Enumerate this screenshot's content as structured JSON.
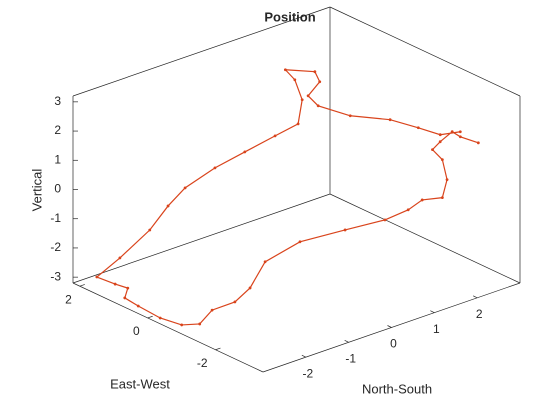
{
  "chart_data": {
    "type": "line3d",
    "title": "Position",
    "xlabel": "North-South",
    "ylabel": "East-West",
    "zlabel": "Vertical",
    "xlim": [
      -3,
      3
    ],
    "ylim": [
      -3.4,
      2.2
    ],
    "zlim": [
      -3.2,
      3.2
    ],
    "xticks": [
      -2,
      -1,
      0,
      1,
      2
    ],
    "yticks": [
      -2,
      0,
      2
    ],
    "zticks": [
      -3,
      -2,
      -1,
      0,
      1,
      2,
      3
    ],
    "series": [
      {
        "color": "#d9441c",
        "x": [
          2.74,
          2.32,
          2.13,
          1.85,
          1.67,
          1.9,
          2.01,
          1.9,
          1.43,
          1.42,
          1.32,
          1.0,
          0.39,
          -0.4,
          -1.1,
          -1.62,
          -2.16,
          -2.64,
          -2.91,
          -3.0,
          -2.95,
          -2.9,
          -2.83,
          -2.8,
          -2.76,
          -2.38,
          -2.0,
          -1.81,
          -1.65,
          -1.27,
          -0.89,
          -0.5,
          -0.2,
          0.22,
          0.61,
          0.77,
          1.11,
          0.97,
          0.58,
          0.68,
          1.16,
          1.75,
          1.98,
          2.16,
          2.43
        ],
        "y": [
          -2.5,
          -2.5,
          -2.5,
          -2.5,
          -2.5,
          -2.5,
          -2.5,
          -2.5,
          -2.5,
          -2.1,
          -1.54,
          -0.77,
          -0.21,
          -0.18,
          -0.62,
          -0.83,
          -0.84,
          -1.08,
          -0.89,
          -0.37,
          0.34,
          0.8,
          0.8,
          1.21,
          1.8,
          1.6,
          1.2,
          0.9,
          0.6,
          0.2,
          -0.2,
          -0.6,
          -0.9,
          -0.49,
          0.22,
          0.7,
          0.26,
          -0.06,
          -0.21,
          -0.38,
          -0.72,
          -1.15,
          -1.69,
          -2.11,
          -2.36
        ],
        "z": [
          1.24,
          1.66,
          1.93,
          1.73,
          1.55,
          1.09,
          0.35,
          -0.21,
          -0.05,
          -0.6,
          -1.2,
          -1.8,
          -2.2,
          -2.5,
          -2.8,
          -2.9,
          -2.9,
          -3,
          -3,
          -3,
          -3,
          -3,
          -2.7,
          -2.8,
          -2.9,
          -2.33,
          -1.35,
          -0.46,
          0.24,
          0.95,
          1.52,
          2.09,
          2.51,
          2.9,
          3.0,
          3.0,
          3.0,
          2.9,
          2.7,
          2.4,
          2.0,
          1.8,
          1.7,
          1.6,
          1.7
        ]
      }
    ]
  }
}
